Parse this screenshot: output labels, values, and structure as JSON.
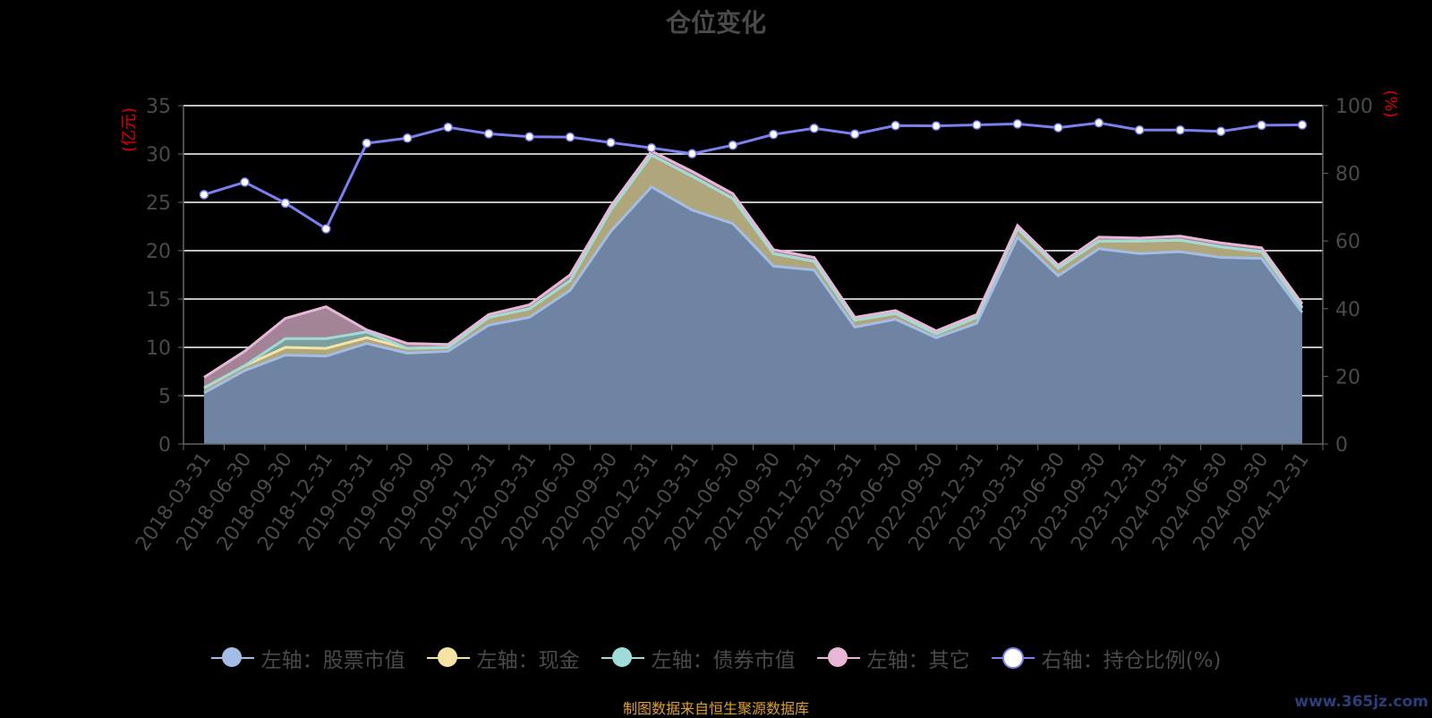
{
  "title": "仓位变化",
  "footer": "制图数据来自恒生聚源数据库",
  "watermark": "www.365jz.com",
  "chart_data": {
    "type": "area",
    "title": "仓位变化",
    "categories": [
      "2018-03-31",
      "2018-06-30",
      "2018-09-30",
      "2018-12-31",
      "2019-03-31",
      "2019-06-30",
      "2019-09-30",
      "2019-12-31",
      "2020-03-31",
      "2020-06-30",
      "2020-09-30",
      "2020-12-31",
      "2021-03-31",
      "2021-06-30",
      "2021-09-30",
      "2021-12-31",
      "2022-03-31",
      "2022-06-30",
      "2022-09-30",
      "2022-12-31",
      "2023-03-31",
      "2023-06-30",
      "2023-09-30",
      "2023-12-31",
      "2024-03-31",
      "2024-06-30",
      "2024-09-30",
      "2024-12-31"
    ],
    "left_axis": {
      "label": "(亿元)",
      "ylim": [
        0,
        35
      ],
      "ticks": [
        0,
        5,
        10,
        15,
        20,
        25,
        30,
        35
      ]
    },
    "right_axis": {
      "label": "(%)",
      "ylim": [
        0,
        100
      ],
      "ticks": [
        0,
        20,
        40,
        60,
        80,
        100
      ]
    },
    "stacked": true,
    "series": [
      {
        "name": "左轴：股票市值",
        "axis": "left",
        "color": "#a3bde6",
        "fill": "#6f83a2",
        "values": [
          5.3,
          7.6,
          9.2,
          9.1,
          10.4,
          9.4,
          9.6,
          12.3,
          13.1,
          15.9,
          22.0,
          26.6,
          24.2,
          22.8,
          18.4,
          18.0,
          12.1,
          12.9,
          11.0,
          12.5,
          21.4,
          17.4,
          20.2,
          19.7,
          19.9,
          19.3,
          19.2,
          13.6
        ]
      },
      {
        "name": "左轴：现金",
        "axis": "left",
        "color": "#f5e3a6",
        "fill": "#b0a67c",
        "values": [
          0.5,
          0.5,
          0.8,
          0.8,
          0.6,
          0.5,
          0.4,
          0.8,
          0.9,
          1.0,
          2.2,
          3.3,
          3.5,
          2.6,
          1.3,
          0.9,
          0.7,
          0.6,
          0.4,
          0.6,
          0.9,
          0.8,
          0.8,
          1.3,
          1.2,
          1.1,
          0.7,
          0.5
        ]
      },
      {
        "name": "左轴：债券市值",
        "axis": "left",
        "color": "#9fdcd8",
        "fill": "#7a9f9c",
        "values": [
          0,
          0,
          0.9,
          1.0,
          0.6,
          0,
          0,
          0,
          0,
          0,
          0,
          0,
          0,
          0,
          0,
          0,
          0,
          0,
          0,
          0,
          0,
          0,
          0,
          0,
          0,
          0,
          0,
          0
        ]
      },
      {
        "name": "左轴：其它",
        "axis": "left",
        "color": "#e8b6d6",
        "fill": "#a38497",
        "values": [
          1.1,
          1.5,
          2.1,
          3.3,
          0.2,
          0.5,
          0.3,
          0.3,
          0.4,
          0.6,
          0.4,
          0.4,
          0.5,
          0.5,
          0.4,
          0.4,
          0.3,
          0.3,
          0.3,
          0.3,
          0.3,
          0.3,
          0.4,
          0.3,
          0.4,
          0.4,
          0.4,
          0.4
        ]
      },
      {
        "name": "右轴：持仓比例(%)",
        "axis": "right",
        "type": "line",
        "color": "#7b80f0",
        "values": [
          73.7,
          77.4,
          71.2,
          63.6,
          88.9,
          90.4,
          93.6,
          91.7,
          90.8,
          90.7,
          89.1,
          87.5,
          85.8,
          88.3,
          91.5,
          93.3,
          91.6,
          94.1,
          94.0,
          94.3,
          94.6,
          93.5,
          94.9,
          92.8,
          92.8,
          92.4,
          94.2,
          94.3
        ]
      }
    ],
    "grid": true,
    "legend_position": "bottom"
  },
  "legend_icons": [
    "circle-icon",
    "circle-icon",
    "circle-icon",
    "circle-icon",
    "circle-icon"
  ]
}
